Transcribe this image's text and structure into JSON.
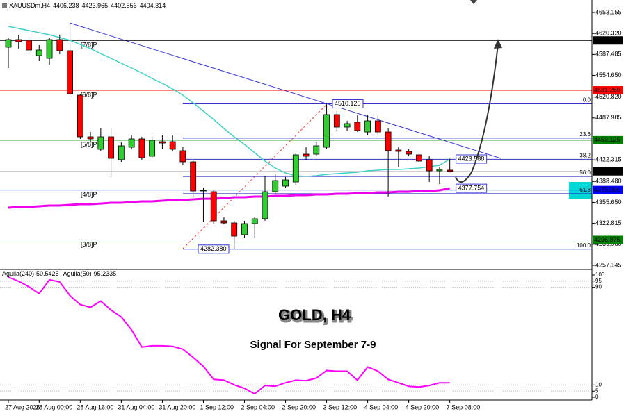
{
  "chart_data": [
    {
      "type": "candlestick",
      "symbol": "XAUUSDm,H4",
      "categories": [
        "27 Aug 2026",
        null,
        null,
        "28 Aug 00:00",
        null,
        null,
        null,
        "28 Aug 16:00",
        null,
        null,
        null,
        "31 Aug 04:00",
        null,
        null,
        null,
        "31 Aug 20:00",
        null,
        null,
        null,
        "1 Sep 12:00",
        null,
        null,
        null,
        "2 Sep 04:00",
        null,
        null,
        null,
        "2 Sep 20:00",
        null,
        null,
        null,
        "3 Sep 12:00",
        null,
        null,
        null,
        "4 Sep 04:00",
        null,
        null,
        null,
        "4 Sep 20:00",
        null,
        null,
        null,
        "7 Sep 08:00"
      ],
      "open": [
        4598.76,
        4610.72,
        4609.64,
        4585.7,
        4581.35,
        4610.72,
        4593.32,
        4523.68,
        4458.4,
        4438.82,
        4458.4,
        4422.5,
        4442.08,
        4455.14,
        4427.94,
        4450.79,
        4450.79,
        4436.64,
        4419.24,
        4373.54,
        4372.45,
        4326.76,
        4323.49,
        4305.0,
        4322.4,
        4330.02,
        4372.45,
        4381.16,
        4387.68,
        4431.2,
        4431.2,
        4442.08,
        4493.22,
        4473.64,
        4481.25,
        4466.02,
        4483.43,
        4466.02,
        4437.73,
        4435.56,
        4430.12,
        4422.5,
        4405.09,
        4406.238
      ],
      "high": [
        4612.9,
        4618.34,
        4612.9,
        4602.02,
        4612.9,
        4618.34,
        4634.66,
        4525.86,
        4466.02,
        4471.46,
        4472.55,
        4449.7,
        4460.58,
        4458.4,
        4458.4,
        4460.58,
        4460.58,
        4442.08,
        4422.5,
        4378.98,
        4374.63,
        4332.2,
        4326.76,
        4326.76,
        4333.28,
        4397.48,
        4400.74,
        4395.3,
        4433.38,
        4442.08,
        4449.7,
        4510.12,
        4498.66,
        4483.43,
        4493.22,
        4493.22,
        4493.22,
        4471.46,
        4442.08,
        4438.82,
        4433.38,
        4429.03,
        4411.62,
        4423.965
      ],
      "low": [
        4566.12,
        4596.58,
        4587.88,
        4577.0,
        4571.56,
        4587.88,
        4523.68,
        4455.14,
        4449.7,
        4435.56,
        4395.3,
        4419.24,
        4438.82,
        4422.5,
        4424.68,
        4438.82,
        4435.56,
        4413.8,
        4364.84,
        4324.58,
        4322.4,
        4321.32,
        4282.38,
        4300.64,
        4300.64,
        4326.76,
        4368.1,
        4378.98,
        4383.33,
        4422.5,
        4427.94,
        4438.82,
        4468.2,
        4468.2,
        4466.02,
        4460.58,
        4460.58,
        4364.84,
        4411.62,
        4427.94,
        4419.24,
        4387.68,
        4384.42,
        4402.556
      ],
      "close": [
        4610.72,
        4607.46,
        4594.4,
        4594.4,
        4610.72,
        4593.32,
        4525.86,
        4458.4,
        4455.14,
        4458.4,
        4424.68,
        4444.26,
        4455.14,
        4425.76,
        4452.96,
        4448.61,
        4438.82,
        4419.24,
        4373.54,
        4374.63,
        4326.76,
        4323.49,
        4302.82,
        4322.4,
        4330.02,
        4372.45,
        4389.86,
        4390.95,
        4430.12,
        4427.94,
        4444.26,
        4493.22,
        4473.64,
        4479.08,
        4468.2,
        4483.43,
        4466.02,
        4436.64,
        4435.56,
        4431.2,
        4420.32,
        4405.09,
        4407.27,
        4404.314
      ],
      "up_color": "#32cd32",
      "down_color": "#ff0000",
      "series": [
        {
          "color": "#40d0c8",
          "values": [
            4631.4,
            4628.1,
            4624.9,
            4621.6,
            4618.3,
            4614.0,
            4609.6,
            4603.1,
            4596.6,
            4588.9,
            4581.4,
            4573.7,
            4566.1,
            4558.5,
            4549.8,
            4542.2,
            4533.5,
            4523.7,
            4511.7,
            4498.7,
            4485.6,
            4471.5,
            4458.4,
            4446.4,
            4433.4,
            4420.3,
            4409.4,
            4401.8,
            4397.5,
            4396.4,
            4397.5,
            4399.6,
            4400.7,
            4401.8,
            4402.9,
            4405.1,
            4406.2,
            4407.3,
            4407.3,
            4408.4,
            4409.4,
            4411.6,
            4413.8,
            4423.588
          ]
        },
        {
          "color": "#ee00ee",
          "values": [
            4347.4,
            4348.5,
            4348.5,
            4349.6,
            4350.7,
            4350.7,
            4351.8,
            4352.9,
            4352.9,
            4353.9,
            4355.0,
            4355.0,
            4356.1,
            4357.2,
            4357.2,
            4358.3,
            4359.4,
            4359.4,
            4360.5,
            4361.5,
            4361.5,
            4362.6,
            4363.7,
            4363.7,
            4364.8,
            4364.8,
            4365.9,
            4365.9,
            4367.0,
            4367.0,
            4368.1,
            4368.1,
            4369.2,
            4369.2,
            4370.3,
            4370.3,
            4371.4,
            4371.4,
            4372.4,
            4372.4,
            4373.5,
            4373.5,
            4374.6,
            4377.754
          ]
        }
      ],
      "levels": [
        {
          "name": "[7/8]P",
          "price": 4609.375,
          "color": "#000000"
        },
        {
          "name": "[6/8]P",
          "price": {
            "value": 4531.25,
            "label": "4531.250"
          },
          "color": "#ff0000"
        },
        {
          "name": "[5/8]P",
          "price": 4453.125,
          "color": "#008000"
        },
        {
          "name": "[4/8]P",
          "price": {
            "value": 4375,
            "label": "4375.000"
          },
          "color": "#0000ff"
        },
        {
          "name": "[3/8]P",
          "price": 4296.875,
          "color": "#008000"
        }
      ],
      "fib": {
        "high": {
          "value": 4510.12,
          "label": "4510.120"
        },
        "low": {
          "value": 4282.38,
          "label": "4282.380"
        },
        "color": "#3333cc",
        "levels": [
          {
            "value": 0,
            "label": "0.0"
          },
          23.6,
          38.2,
          {
            "value": 50,
            "label": "50.0"
          },
          61.8,
          {
            "value": 100,
            "label": "100.0"
          }
        ]
      },
      "ylim": [
        4250.6,
        4672.74
      ],
      "yticks": [
        4653.155,
        {
          "value": 4620.32,
          "label": "4620.320"
        },
        4587.485,
        {
          "value": 4554.65,
          "label": "4554.650"
        },
        {
          "value": 4520.82,
          "label": "4520.820"
        },
        4487.985,
        4422.315,
        {
          "value": 4388.48,
          "label": "4388.480"
        },
        {
          "value": 4355.65,
          "label": "4355.650"
        },
        4322.815,
        {
          "value": 4289.98,
          "label": "4289.980"
        },
        4257.145
      ]
    },
    {
      "type": "line",
      "title": "GOLD, H4",
      "subtitle": "Signal For September 7-9",
      "legend": [
        {
          "name": "Aguila(240)",
          "value": 50.5425
        },
        {
          "name": "Aguila(50)",
          "value": 95.2335
        }
      ],
      "series": [
        {
          "color": "#ff00ff",
          "values": [
            98.3,
            94.9,
            90.4,
            84.8,
            96.1,
            94.4,
            83.1,
            75.8,
            73.6,
            78.7,
            71.3,
            65.7,
            55.1,
            41.0,
            42.1,
            42.1,
            41.6,
            39.3,
            32.6,
            25.3,
            14.6,
            14.0,
            10.1,
            7.3,
            2.8,
            9.6,
            9.0,
            11.8,
            14.0,
            13.5,
            15.7,
            21.9,
            21.3,
            21.3,
            14.0,
            24.7,
            21.3,
            14.6,
            11.8,
            9.0,
            8.4,
            9.6,
            11.8,
            11.8
          ]
        }
      ],
      "ylim": [
        0,
        100
      ],
      "yticks": [
        0,
        5,
        10,
        90,
        95,
        100
      ],
      "levels": [
        95,
        90,
        10,
        5
      ]
    }
  ]
}
